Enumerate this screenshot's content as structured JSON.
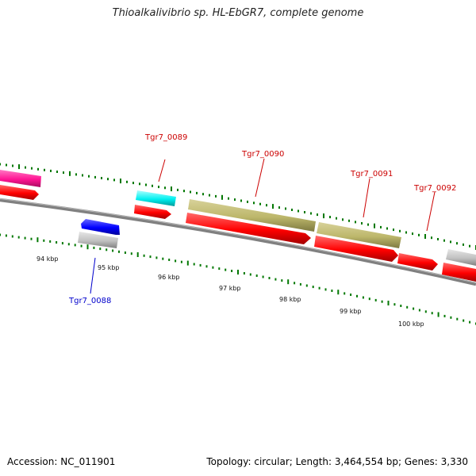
{
  "title": "Thioalkalivibrio sp. HL-EbGR7, complete genome",
  "footer": {
    "accession": "Accession: NC_011901",
    "summary": "Topology: circular; Length: 3,464,554 bp; Genes: 3,330"
  },
  "ruler": {
    "labels": [
      "94 kbp",
      "95 kbp",
      "96 kbp",
      "97 kbp",
      "98 kbp",
      "99 kbp",
      "100 kbp"
    ]
  },
  "gene_labels": [
    {
      "text": "Tgr7_0089",
      "color": "#cc0000"
    },
    {
      "text": "Tgr7_0090",
      "color": "#cc0000"
    },
    {
      "text": "Tgr7_0091",
      "color": "#cc0000"
    },
    {
      "text": "Tgr7_0092",
      "color": "#cc0000"
    },
    {
      "text": "Tgr7_0088",
      "color": "#0000cc"
    }
  ],
  "colors": {
    "cds": "#ff0000",
    "gene_pink": "#ff1493",
    "gene_cyan": "#00ffff",
    "gene_khaki": "#bdb76b",
    "gene_blue": "#0000ff",
    "gene_grey": "#c0c0c0",
    "backbone": "#808080",
    "ticks": "#007700"
  }
}
